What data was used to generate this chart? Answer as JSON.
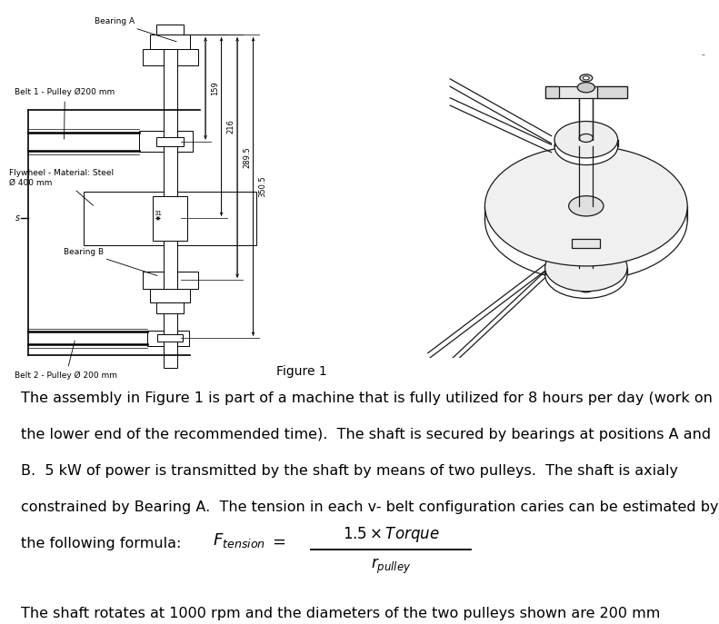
{
  "figure_caption": "Figure 1",
  "body_text_lines": [
    "The assembly in Figure 1 is part of a machine that is fully utilized for 8 hours per day (work on",
    "the lower end of the recommended time).  The shaft is secured by bearings at positions A and",
    "B.  5 kW of power is transmitted by the shaft by means of two pulleys.  The shaft is axialy",
    "constrained by Bearing A.  The tension in each v- belt configuration caries can be estimated by",
    "the following formula:"
  ],
  "last_line": "The shaft rotates at 1000 rpm and the diameters of the two pulleys shown are 200 mm",
  "drawing_labels": {
    "bearing_a": "Bearing A",
    "belt1": "Belt 1 - Pulley Ø200 mm",
    "flywheel": "Flywheel - Material: Steel\nØ 400 mm",
    "bearing_b": "Bearing B",
    "belt2": "Belt 2 - Pulley Ø 200 mm"
  },
  "dim_labels": [
    "159",
    "216",
    "289.5",
    "350.5"
  ],
  "bg_color": "#ffffff",
  "text_color": "#000000",
  "font_size_body": 11.5,
  "font_size_caption": 10,
  "font_size_label": 6.5,
  "font_size_dim": 6.0
}
